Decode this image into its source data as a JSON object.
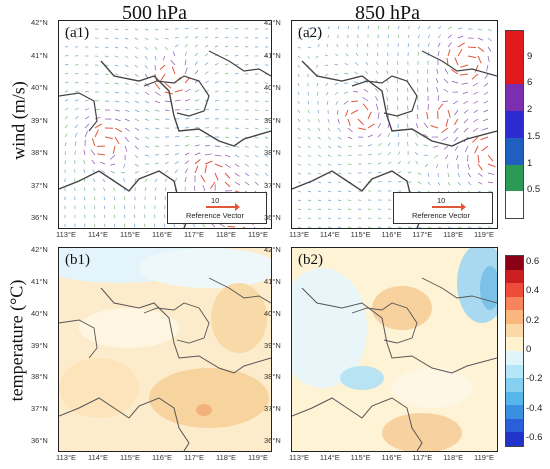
{
  "column_titles": [
    "500 hPa",
    "850 hPa"
  ],
  "row_labels": {
    "wind": "wind (m/s)",
    "temperature": "temperature (°C)"
  },
  "panels": [
    {
      "label": "(a1)",
      "kind": "wind"
    },
    {
      "label": "(a2)",
      "kind": "wind"
    },
    {
      "label": "(b1)",
      "kind": "temperature"
    },
    {
      "label": "(b2)",
      "kind": "temperature"
    }
  ],
  "reference_vector": {
    "value": "10",
    "text": "Reference Vector"
  },
  "lat_ticks": [
    "42°N",
    "41°N",
    "40°N",
    "39°N",
    "38°N",
    "37°N",
    "36°N"
  ],
  "lon_ticks": [
    "113°E",
    "114°E",
    "115°E",
    "116°E",
    "117°E",
    "118°E",
    "119°E"
  ],
  "wind_colorbar": {
    "labels": [
      "9",
      "6",
      "2",
      "1.5",
      "1",
      "0.5"
    ],
    "colors": [
      "#e31a1c",
      "#e31a1c",
      "#7b2fb0",
      "#2b2bd0",
      "#1f5fbf",
      "#2a9a55",
      "#ffffff"
    ]
  },
  "temp_colorbar": {
    "labels": [
      "0.6",
      "0.4",
      "0.2",
      "0",
      "-0.2",
      "-0.4",
      "-0.6"
    ],
    "colors": [
      "#8b0015",
      "#cc1f1f",
      "#ef4b3a",
      "#f7845a",
      "#f9b77e",
      "#fbd9a6",
      "#fff3cf",
      "#e0f5fb",
      "#b4e6f7",
      "#85d0f0",
      "#55b6ea",
      "#3b8fe0",
      "#2a5fd9",
      "#2233c8"
    ]
  },
  "colors": {
    "vector": "#8a55b5",
    "vector_strong": "#e0573a",
    "border": "#444444"
  }
}
